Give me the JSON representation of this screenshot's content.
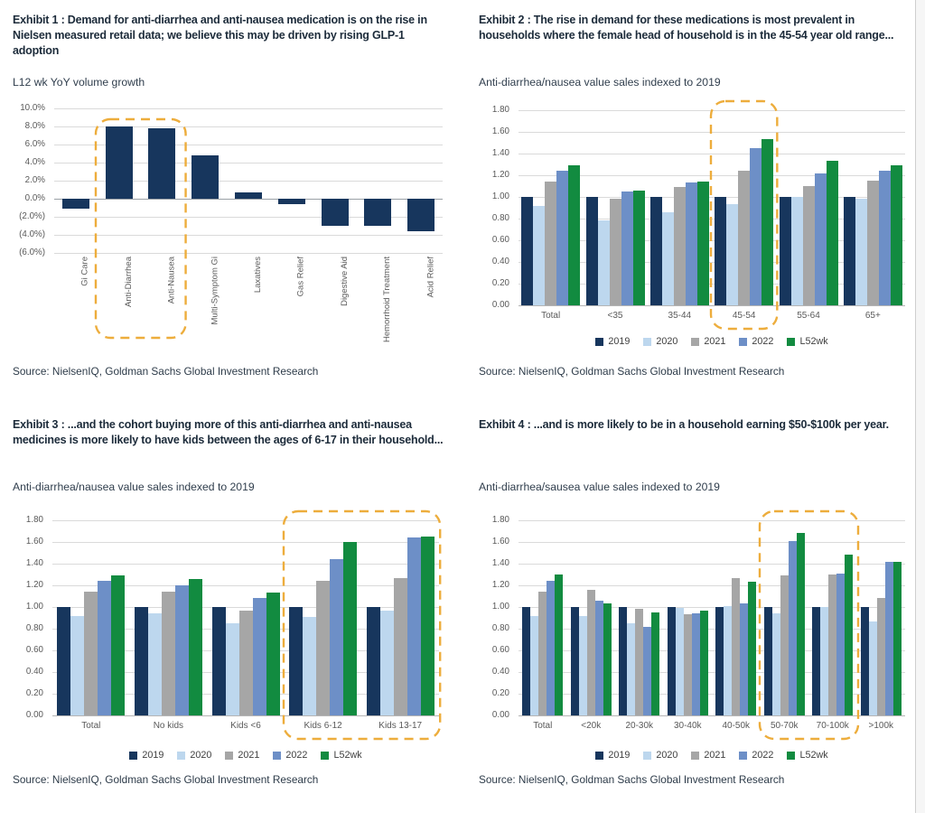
{
  "page": {
    "source_note": "Source: NielsenIQ, Goldman Sachs Global Investment Research"
  },
  "colors": {
    "series_2019": "#17365D",
    "series_2020": "#BDD7EE",
    "series_2021": "#A6A6A6",
    "series_2022": "#6D8FC7",
    "series_l52wk": "#128B40",
    "bar_navy": "#17365D",
    "highlight_dash": "#EDAD3C",
    "title_text": "#1C2B3A",
    "axis_text": "#595959"
  },
  "exhibits": [
    {
      "title": "Exhibit 1 : Demand for anti-diarrhea and anti-nausea medication is on the rise in Nielsen measured retail data; we believe this may be driven by rising GLP-1 adoption",
      "subtitle": "L12 wk YoY volume growth",
      "source": "Source: NielsenIQ, Goldman Sachs Global Investment Research"
    },
    {
      "title": "Exhibit 2 : The rise in demand for these medications is most prevalent in households where the female head of household is in the 45-54 year old range...",
      "subtitle": "Anti-diarrhea/nausea value sales indexed to 2019",
      "source": "Source: NielsenIQ, Goldman Sachs Global Investment Research"
    },
    {
      "title": "Exhibit 3 : ...and the cohort buying more of this anti-diarrhea and anti-nausea medicines is more likely to have kids between the ages of 6-17 in their household...",
      "subtitle": "Anti-diarrhea/nausea value sales indexed to 2019",
      "source": "Source: NielsenIQ, Goldman Sachs Global Investment Research"
    },
    {
      "title": "Exhibit 4 : ...and is more likely to be in a household earning $50-$100k per year.",
      "subtitle": "Anti-diarrhea/sausea value sales indexed to 2019",
      "source": "Source: NielsenIQ, Goldman Sachs Global Investment Research"
    }
  ],
  "chart_data": [
    {
      "type": "bar",
      "title": "L12 wk YoY volume growth",
      "unit": "% YoY volume growth",
      "categories": [
        "Gi Care",
        "Anti-Diarrhea",
        "Anti-Nausea",
        "Multi-Symptom Gi",
        "Laxatives",
        "Gas Relief",
        "Digestive Aid",
        "Hemorrhoid Treatment",
        "Acid Relief"
      ],
      "values": [
        -1.1,
        8.0,
        7.8,
        4.8,
        0.7,
        -0.6,
        -3.0,
        -3.0,
        -3.6
      ],
      "bar_color": "#17365D",
      "ylim": [
        -6,
        10
      ],
      "ytick_step": 2,
      "ytick_labels": [
        "10.0%",
        "8.0%",
        "6.0%",
        "4.0%",
        "2.0%",
        "0.0%",
        "(2.0%)",
        "(4.0%)",
        "(6.0%)"
      ],
      "grid": true,
      "legend": false,
      "highlight": {
        "from": 1,
        "to": 2,
        "categories": [
          "Anti-Diarrhea",
          "Anti-Nausea"
        ]
      }
    },
    {
      "type": "grouped-bar",
      "title": "Anti-diarrhea/nausea value sales indexed to 2019, by age of female head of household",
      "categories": [
        "Total",
        "<35",
        "35-44",
        "45-54",
        "55-64",
        "65+"
      ],
      "series": [
        {
          "name": "2019",
          "color": "#17365D",
          "values": [
            1.0,
            1.0,
            1.0,
            1.0,
            1.0,
            1.0
          ]
        },
        {
          "name": "2020",
          "color": "#BDD7EE",
          "values": [
            0.92,
            0.78,
            0.86,
            0.93,
            1.0,
            0.98
          ]
        },
        {
          "name": "2021",
          "color": "#A6A6A6",
          "values": [
            1.14,
            0.98,
            1.09,
            1.24,
            1.1,
            1.15
          ]
        },
        {
          "name": "2022",
          "color": "#6D8FC7",
          "values": [
            1.24,
            1.05,
            1.13,
            1.45,
            1.22,
            1.24
          ]
        },
        {
          "name": "L52wk",
          "color": "#128B40",
          "values": [
            1.29,
            1.06,
            1.14,
            1.53,
            1.33,
            1.29
          ]
        }
      ],
      "ylim": [
        0,
        1.8
      ],
      "ytick_step": 0.2,
      "grid": true,
      "legend_position": "bottom",
      "highlight": {
        "from": 3,
        "to": 3,
        "categories": [
          "45-54"
        ]
      }
    },
    {
      "type": "grouped-bar",
      "title": "Anti-diarrhea/nausea value sales indexed to 2019, by kids in household",
      "categories": [
        "Total",
        "No kids",
        "Kids <6",
        "Kids 6-12",
        "Kids 13-17"
      ],
      "series": [
        {
          "name": "2019",
          "color": "#17365D",
          "values": [
            1.0,
            1.0,
            1.0,
            1.0,
            1.0
          ]
        },
        {
          "name": "2020",
          "color": "#BDD7EE",
          "values": [
            0.92,
            0.94,
            0.85,
            0.91,
            0.97
          ]
        },
        {
          "name": "2021",
          "color": "#A6A6A6",
          "values": [
            1.14,
            1.14,
            0.97,
            1.24,
            1.27
          ]
        },
        {
          "name": "2022",
          "color": "#6D8FC7",
          "values": [
            1.24,
            1.2,
            1.08,
            1.44,
            1.64
          ]
        },
        {
          "name": "L52wk",
          "color": "#128B40",
          "values": [
            1.29,
            1.26,
            1.13,
            1.6,
            1.65
          ]
        }
      ],
      "ylim": [
        0,
        1.8
      ],
      "ytick_step": 0.2,
      "grid": true,
      "legend_position": "bottom",
      "highlight": {
        "from": 3,
        "to": 4,
        "categories": [
          "Kids 6-12",
          "Kids 13-17"
        ]
      }
    },
    {
      "type": "grouped-bar",
      "title": "Anti-diarrhea/sausea value sales indexed to 2019, by household income",
      "categories": [
        "Total",
        "<20k",
        "20-30k",
        "30-40k",
        "40-50k",
        "50-70k",
        "70-100k",
        ">100k"
      ],
      "series": [
        {
          "name": "2019",
          "color": "#17365D",
          "values": [
            1.0,
            1.0,
            1.0,
            1.0,
            1.0,
            1.0,
            1.0,
            1.0
          ]
        },
        {
          "name": "2020",
          "color": "#BDD7EE",
          "values": [
            0.92,
            0.92,
            0.85,
            0.99,
            1.01,
            0.94,
            1.0,
            0.87
          ]
        },
        {
          "name": "2021",
          "color": "#A6A6A6",
          "values": [
            1.14,
            1.16,
            0.98,
            0.93,
            1.27,
            1.29,
            1.3,
            1.08
          ]
        },
        {
          "name": "2022",
          "color": "#6D8FC7",
          "values": [
            1.24,
            1.06,
            0.82,
            0.94,
            1.03,
            1.61,
            1.31,
            1.42
          ]
        },
        {
          "name": "L52wk",
          "color": "#128B40",
          "values": [
            1.3,
            1.03,
            0.95,
            0.97,
            1.23,
            1.68,
            1.48,
            1.42
          ]
        }
      ],
      "ylim": [
        0,
        1.8
      ],
      "ytick_step": 0.2,
      "grid": true,
      "legend_position": "bottom",
      "highlight": {
        "from": 5,
        "to": 6,
        "categories": [
          "50-70k",
          "70-100k"
        ]
      }
    }
  ]
}
